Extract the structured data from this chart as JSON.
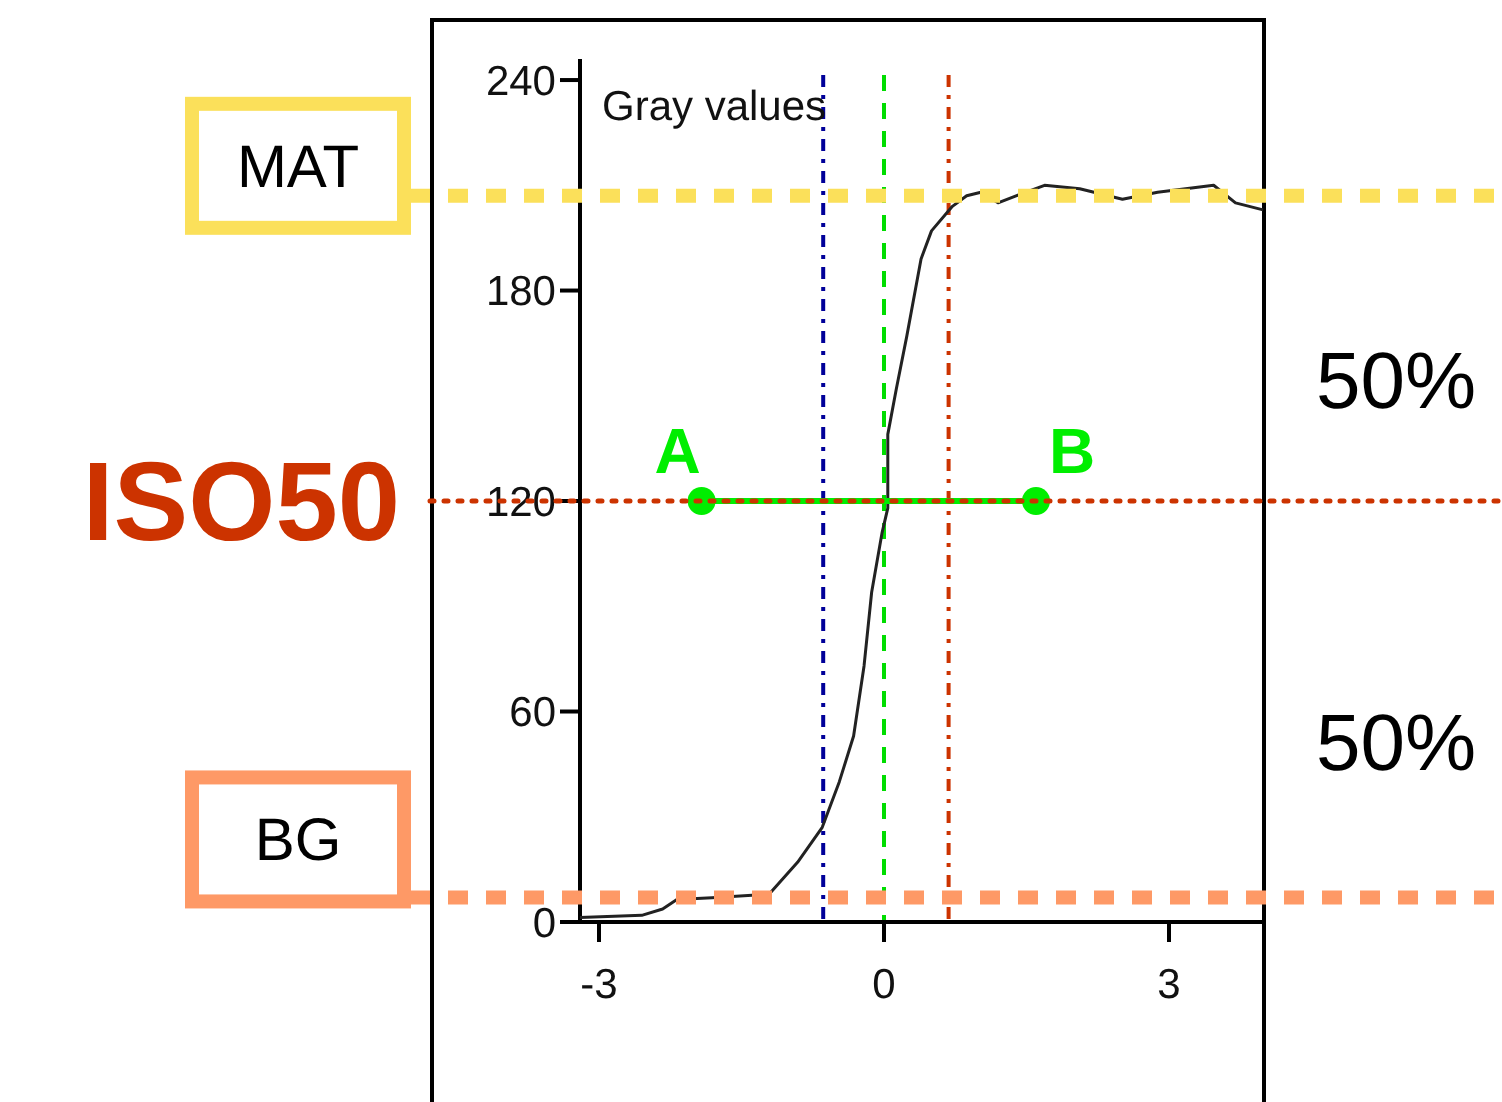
{
  "chart_data": {
    "type": "line",
    "ylabel": "Gray values",
    "xlim": [
      -3.2,
      4
    ],
    "ylim": [
      0,
      246
    ],
    "xticks": [
      -3,
      0,
      3
    ],
    "yticks": [
      0,
      60,
      120,
      180,
      240
    ],
    "series": [
      {
        "color": "#222222",
        "marker": "none",
        "line_style": "solid",
        "x": [
          -3.2,
          -2.55,
          -2.33,
          -2.18,
          -1.81,
          -1.21,
          -0.91,
          -0.65,
          -0.47,
          -0.32,
          -0.21,
          -0.13,
          -0.02,
          0.04,
          0.04,
          0.13,
          0.24,
          0.39,
          0.5,
          0.72,
          0.87,
          1.02,
          1.2,
          1.39,
          1.69,
          2.06,
          2.51,
          2.88,
          3.47,
          3.7,
          3.99
        ],
        "values": [
          1.3,
          1.9,
          3.7,
          6.4,
          6.9,
          7.9,
          17,
          27,
          40,
          53,
          73,
          94,
          111,
          118,
          139,
          152,
          167,
          189,
          197,
          204,
          207,
          208,
          205,
          207,
          210,
          209,
          206,
          208,
          210,
          205,
          203
        ]
      },
      {
        "color": "#00ee00",
        "marker": "circle",
        "line_style": "solid",
        "x": [
          -1.92,
          1.6
        ],
        "values": [
          120,
          120
        ]
      }
    ],
    "ref_lines": [
      {
        "axis": "y",
        "value": 207,
        "label": "MAT",
        "color": "#fbe05a",
        "line_style": "dashed"
      },
      {
        "axis": "y",
        "value": 7,
        "label": "BG",
        "color": "#fe9966",
        "line_style": "dashed"
      },
      {
        "axis": "y",
        "value": 120,
        "label": "ISO50",
        "color": "#cc3300",
        "line_style": "dotted"
      },
      {
        "axis": "x",
        "value": -0.64,
        "color": "#000099",
        "line_style": "dashdot"
      },
      {
        "axis": "x",
        "value": 0,
        "color": "#00dd00",
        "line_style": "dashed"
      },
      {
        "axis": "x",
        "value": 0.68,
        "color": "#cc3300",
        "line_style": "dashdot"
      }
    ],
    "annotations": [
      {
        "text": "A",
        "x": -1.92,
        "y": 120
      },
      {
        "text": "B",
        "x": 1.6,
        "y": 120
      },
      "50%",
      "50%"
    ]
  }
}
